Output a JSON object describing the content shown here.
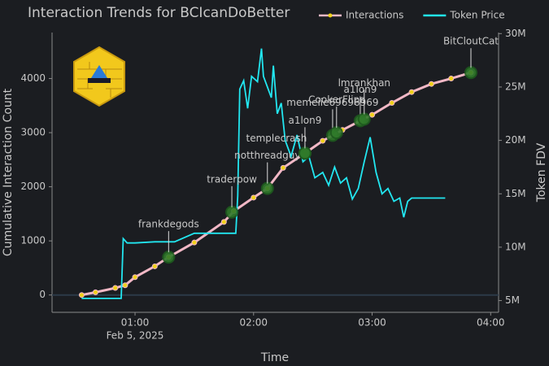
{
  "chart_data": {
    "type": "line",
    "title": "Interaction Trends for BCIcanDoBetter",
    "x_label": "Time",
    "y_label": "Cumulative Interaction Count",
    "y2_label": "Token FDV",
    "x_date_label": "Feb 5, 2025",
    "xlim": [
      "2025-02-05T00:18",
      "2025-02-05T04:04"
    ],
    "xticks": [
      {
        "value": "2025-02-05T01:00",
        "label": "01:00"
      },
      {
        "value": "2025-02-05T02:00",
        "label": "02:00"
      },
      {
        "value": "2025-02-05T03:00",
        "label": "03:00"
      },
      {
        "value": "2025-02-05T04:00",
        "label": "04:00"
      }
    ],
    "ylim": [
      -320,
      4850
    ],
    "yticks": [
      0,
      1000,
      2000,
      3000,
      4000
    ],
    "y2lim": [
      3900000,
      30100000
    ],
    "y2ticks": [
      {
        "value": 5000000,
        "label": "5M"
      },
      {
        "value": 10000000,
        "label": "10M"
      },
      {
        "value": 15000000,
        "label": "15M"
      },
      {
        "value": 20000000,
        "label": "20M"
      },
      {
        "value": 25000000,
        "label": "25M"
      },
      {
        "value": 30000000,
        "label": "30M"
      }
    ],
    "legend": "upper right",
    "series": [
      {
        "name": "Interactions",
        "color": "#f2b8c6",
        "marker_color": "#f0d21a",
        "x": [
          "2025-02-05T00:33",
          "2025-02-05T00:40",
          "2025-02-05T00:50",
          "2025-02-05T00:55",
          "2025-02-05T01:00",
          "2025-02-05T01:10",
          "2025-02-05T01:17",
          "2025-02-05T01:30",
          "2025-02-05T01:45",
          "2025-02-05T01:50",
          "2025-02-05T02:00",
          "2025-02-05T02:07",
          "2025-02-05T02:15",
          "2025-02-05T02:26",
          "2025-02-05T02:35",
          "2025-02-05T02:45",
          "2025-02-05T02:54",
          "2025-02-05T03:00",
          "2025-02-05T03:10",
          "2025-02-05T03:20",
          "2025-02-05T03:30",
          "2025-02-05T03:40",
          "2025-02-05T03:50"
        ],
        "values": [
          0,
          50,
          130,
          180,
          330,
          530,
          700,
          970,
          1350,
          1550,
          1800,
          1970,
          2350,
          2620,
          2850,
          3050,
          3220,
          3330,
          3550,
          3750,
          3900,
          4000,
          4110
        ]
      },
      {
        "name": "Token Price",
        "color": "#22e6f0",
        "axis": "y2",
        "x": [
          "2025-02-05T00:33",
          "2025-02-05T00:53",
          "2025-02-05T00:54",
          "2025-02-05T00:56",
          "2025-02-05T01:00",
          "2025-02-05T01:10",
          "2025-02-05T01:20",
          "2025-02-05T01:30",
          "2025-02-05T01:51",
          "2025-02-05T01:52",
          "2025-02-05T01:53",
          "2025-02-05T01:55",
          "2025-02-05T01:57",
          "2025-02-05T01:59",
          "2025-02-05T02:02",
          "2025-02-05T02:04",
          "2025-02-05T02:05",
          "2025-02-05T02:07",
          "2025-02-05T02:09",
          "2025-02-05T02:10",
          "2025-02-05T02:12",
          "2025-02-05T02:14",
          "2025-02-05T02:16",
          "2025-02-05T02:19",
          "2025-02-05T02:22",
          "2025-02-05T02:25",
          "2025-02-05T02:28",
          "2025-02-05T02:31",
          "2025-02-05T02:35",
          "2025-02-05T02:38",
          "2025-02-05T02:41",
          "2025-02-05T02:44",
          "2025-02-05T02:47",
          "2025-02-05T02:50",
          "2025-02-05T02:53",
          "2025-02-05T02:56",
          "2025-02-05T02:59",
          "2025-02-05T03:02",
          "2025-02-05T03:05",
          "2025-02-05T03:08",
          "2025-02-05T03:11",
          "2025-02-05T03:14",
          "2025-02-05T03:16",
          "2025-02-05T03:18",
          "2025-02-05T03:20",
          "2025-02-05T03:37"
        ],
        "values": [
          5200000,
          5200000,
          10800000,
          10400000,
          10400000,
          10500000,
          10500000,
          11300000,
          11300000,
          14800000,
          24800000,
          25600000,
          23000000,
          26000000,
          25500000,
          28600000,
          26000000,
          25000000,
          24000000,
          27000000,
          22500000,
          23500000,
          20000000,
          18500000,
          20500000,
          18000000,
          18500000,
          16500000,
          17000000,
          15800000,
          17500000,
          16000000,
          16500000,
          14500000,
          15500000,
          18000000,
          20300000,
          17000000,
          15000000,
          15500000,
          14300000,
          14600000,
          12800000,
          14300000,
          14600000,
          14600000
        ]
      }
    ],
    "annotations": [
      {
        "text": "frankdegods",
        "x": "2025-02-05T01:17",
        "y": 700
      },
      {
        "text": "traderpow",
        "x": "2025-02-05T01:49",
        "y": 1530
      },
      {
        "text": "notthreadguy",
        "x": "2025-02-05T02:07",
        "y": 1970
      },
      {
        "text": "templecrash",
        "x": "2025-02-05T02:26",
        "y": 2620
      },
      {
        "text": "a1lon9",
        "x": "2025-02-05T02:26",
        "y": 2620
      },
      {
        "text": "memeiie69696969",
        "x": "2025-02-05T02:40",
        "y": 2950
      },
      {
        "text": "CookerFlips",
        "x": "2025-02-05T02:42",
        "y": 3000
      },
      {
        "text": "a1lon9",
        "x": "2025-02-05T02:54",
        "y": 3220
      },
      {
        "text": "lmrankhan",
        "x": "2025-02-05T02:56",
        "y": 3250
      },
      {
        "text": "BitCloutCat",
        "x": "2025-02-05T03:50",
        "y": 4110
      }
    ]
  }
}
